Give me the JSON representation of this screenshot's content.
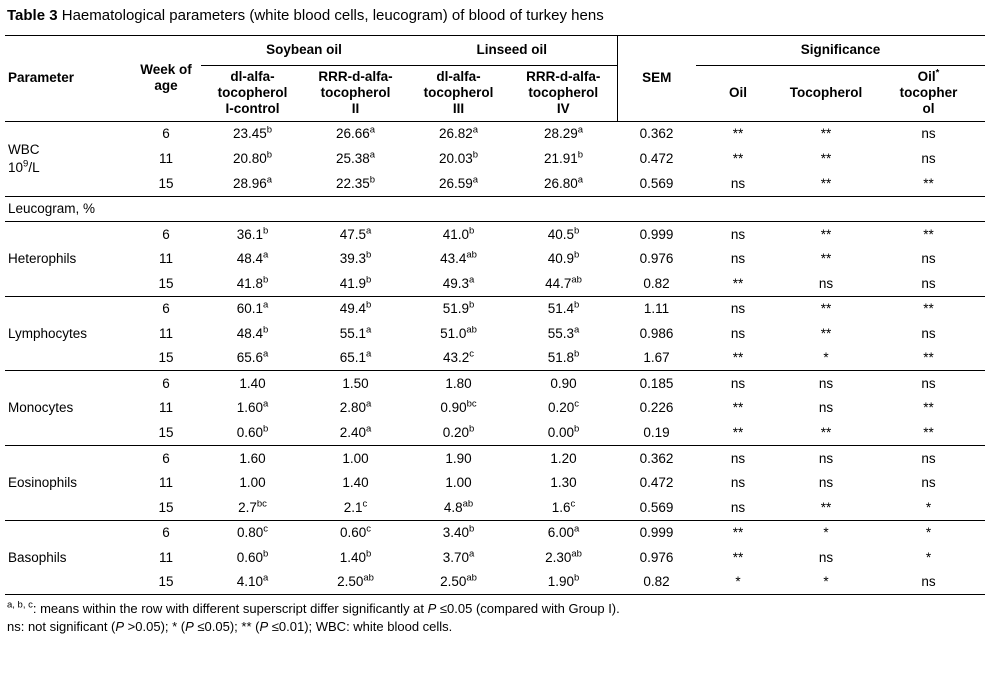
{
  "title": {
    "label": "Table 3",
    "text": "Haematological parameters (white blood cells, leucogram) of blood of turkey hens"
  },
  "table": {
    "header": {
      "parameter": "Parameter",
      "week": "Week of\nage",
      "soybean": "Soybean oil",
      "linseed": "Linseed oil",
      "sem": "SEM",
      "significance": "Significance",
      "cols": [
        "dl-alfa-\ntocopherol\nI-control",
        "RRR-d-alfa-\ntocopherol\nII",
        "dl-alfa-\ntocopherol\nIII",
        "RRR-d-alfa-\ntocopherol\nIV"
      ],
      "sig_cols": [
        "Oil",
        "Tocopherol",
        "Oil^*^\ntocopher\nol"
      ]
    },
    "sections": [
      {
        "parameter": "WBC\n10^9^/L",
        "rows": [
          {
            "week": "6",
            "values": [
              "23.45^b^",
              "26.66^a^",
              "26.82^a^",
              "28.29^a^"
            ],
            "sem": "0.362",
            "sig": [
              "**",
              "**",
              "ns"
            ]
          },
          {
            "week": "11",
            "values": [
              "20.80^b^",
              "25.38^a^",
              "20.03^b^",
              "21.91^b^"
            ],
            "sem": "0.472",
            "sig": [
              "**",
              "**",
              "ns"
            ]
          },
          {
            "week": "15",
            "values": [
              "28.96^a^",
              "22.35^b^",
              "26.59^a^",
              "26.80^a^"
            ],
            "sem": "0.569",
            "sig": [
              "ns",
              "**",
              "**"
            ]
          }
        ]
      },
      {
        "divider": "Leucogram, %"
      },
      {
        "parameter": "Heterophils",
        "rows": [
          {
            "week": "6",
            "values": [
              "36.1^b^",
              "47.5^a^",
              "41.0^b^",
              "40.5^b^"
            ],
            "sem": "0.999",
            "sig": [
              "ns",
              "**",
              "**"
            ]
          },
          {
            "week": "11",
            "values": [
              "48.4^a^",
              "39.3^b^",
              "43.4^ab^",
              "40.9^b^"
            ],
            "sem": "0.976",
            "sig": [
              "ns",
              "**",
              "ns"
            ]
          },
          {
            "week": "15",
            "values": [
              "41.8^b^",
              "41.9^b^",
              "49.3^a^",
              "44.7^ab^"
            ],
            "sem": "0.82",
            "sig": [
              "**",
              "ns",
              "ns"
            ]
          }
        ]
      },
      {
        "parameter": "Lymphocytes",
        "rows": [
          {
            "week": "6",
            "values": [
              "60.1^a^",
              "49.4^b^",
              "51.9^b^",
              "51.4^b^"
            ],
            "sem": "1.11",
            "sig": [
              "ns",
              "**",
              "**"
            ]
          },
          {
            "week": "11",
            "values": [
              "48.4^b^",
              "55.1^a^",
              "51.0^ab^",
              "55.3^a^"
            ],
            "sem": "0.986",
            "sig": [
              "ns",
              "**",
              "ns"
            ]
          },
          {
            "week": "15",
            "values": [
              "65.6^a^",
              "65.1^a^",
              "43.2^c^",
              "51.8^b^"
            ],
            "sem": "1.67",
            "sig": [
              "**",
              "*",
              "**"
            ]
          }
        ]
      },
      {
        "parameter": "Monocytes",
        "rows": [
          {
            "week": "6",
            "values": [
              "1.40",
              "1.50",
              "1.80",
              "0.90"
            ],
            "sem": "0.185",
            "sig": [
              "ns",
              "ns",
              "ns"
            ]
          },
          {
            "week": "11",
            "values": [
              "1.60^a^",
              "2.80^a^",
              "0.90^bc^",
              "0.20^c^"
            ],
            "sem": "0.226",
            "sig": [
              "**",
              "ns",
              "**"
            ]
          },
          {
            "week": "15",
            "values": [
              "0.60^b^",
              "2.40^a^",
              "0.20^b^",
              "0.00^b^"
            ],
            "sem": "0.19",
            "sig": [
              "**",
              "**",
              "**"
            ]
          }
        ]
      },
      {
        "parameter": "Eosinophils",
        "rows": [
          {
            "week": "6",
            "values": [
              "1.60",
              "1.00",
              "1.90",
              "1.20"
            ],
            "sem": "0.362",
            "sig": [
              "ns",
              "ns",
              "ns"
            ]
          },
          {
            "week": "11",
            "values": [
              "1.00",
              "1.40",
              "1.00",
              "1.30"
            ],
            "sem": "0.472",
            "sig": [
              "ns",
              "ns",
              "ns"
            ]
          },
          {
            "week": "15",
            "values": [
              "2.7^bc^",
              "2.1^c^",
              "4.8^ab^",
              "1.6^c^"
            ],
            "sem": "0.569",
            "sig": [
              "ns",
              "**",
              "*"
            ]
          }
        ]
      },
      {
        "parameter": "Basophils",
        "rows": [
          {
            "week": "6",
            "values": [
              "0.80^c^",
              "0.60^c^",
              "3.40^b^",
              "6.00^a^"
            ],
            "sem": "0.999",
            "sig": [
              "**",
              "*",
              "*"
            ]
          },
          {
            "week": "11",
            "values": [
              "0.60^b^",
              "1.40^b^",
              "3.70^a^",
              "2.30^ab^"
            ],
            "sem": "0.976",
            "sig": [
              "**",
              "ns",
              "*"
            ]
          },
          {
            "week": "15",
            "values": [
              "4.10^a^",
              "2.50^ab^",
              "2.50^ab^",
              "1.90^b^"
            ],
            "sem": "0.82",
            "sig": [
              "*",
              "*",
              "ns"
            ]
          }
        ]
      }
    ]
  },
  "footnotes": [
    "^a, b, c^: means within the row with different superscript differ significantly at ~P~ ≤0.05 (compared with Group I).",
    "ns: not significant (~P~ >0.05); * (~P~ ≤0.05); ** (~P~ ≤0.01); WBC: white blood cells."
  ]
}
